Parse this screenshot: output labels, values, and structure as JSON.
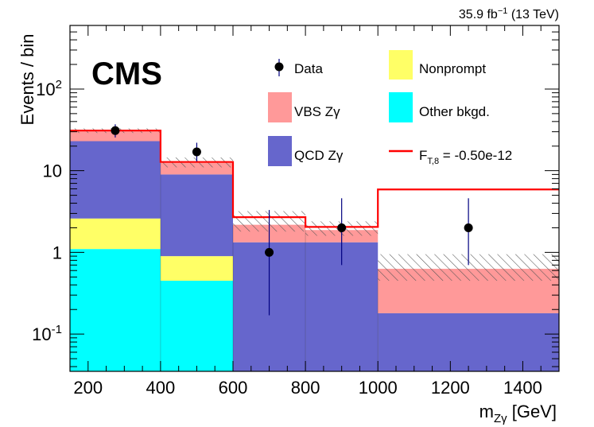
{
  "chart_data": {
    "type": "bar",
    "title": "",
    "luminosity_label": "35.9 fb⁻¹ (13 TeV)",
    "experiment_label": "CMS",
    "xlabel": "m_Zγ [GeV]",
    "xlabel_main": "m",
    "xlabel_sub": "Zγ",
    "xlabel_unit": "[GeV]",
    "ylabel": "Events / bin",
    "xlim": [
      150,
      1500
    ],
    "ylim": [
      0.035,
      600
    ],
    "yscale": "log",
    "x_ticks": [
      {
        "value": 200,
        "label": "200"
      },
      {
        "value": 400,
        "label": "400"
      },
      {
        "value": 600,
        "label": "600"
      },
      {
        "value": 800,
        "label": "800"
      },
      {
        "value": 1000,
        "label": "1000"
      },
      {
        "value": 1200,
        "label": "1200"
      },
      {
        "value": 1400,
        "label": "1400"
      }
    ],
    "y_ticks": [
      {
        "value": 0.1,
        "base": "10",
        "exp": "-1"
      },
      {
        "value": 1,
        "base": "1",
        "exp": ""
      },
      {
        "value": 10,
        "base": "10",
        "exp": ""
      },
      {
        "value": 100,
        "base": "10",
        "exp": "2"
      }
    ],
    "bin_edges": [
      150,
      400,
      600,
      800,
      1000,
      1500
    ],
    "stack": [
      {
        "name": "Other bkgd.",
        "color": "#00ffff",
        "values": [
          1.1,
          0.45,
          0.0,
          0.0,
          0.0
        ]
      },
      {
        "name": "Nonprompt",
        "color": "#ffff66",
        "values": [
          1.5,
          0.45,
          0.0,
          0.0,
          0.0
        ]
      },
      {
        "name": "QCD Zγ",
        "color": "#6666cc",
        "values": [
          20.4,
          8.1,
          1.33,
          1.33,
          0.18
        ]
      },
      {
        "name": "VBS Zγ",
        "color": "#ff9999",
        "values": [
          8.0,
          3.5,
          0.85,
          0.55,
          0.45
        ]
      }
    ],
    "uncertainty_band": {
      "low": [
        29.0,
        11.0,
        1.8,
        1.6,
        0.45
      ],
      "high": [
        33.0,
        14.5,
        3.2,
        2.4,
        0.95
      ]
    },
    "signal": {
      "name": "F_T,8 = -0.50e-12",
      "color": "#ff0000",
      "values": [
        31.0,
        12.8,
        2.7,
        2.05,
        5.9
      ]
    },
    "data": {
      "name": "Data",
      "x": [
        275,
        500,
        700,
        900,
        1250
      ],
      "y": [
        31,
        17,
        1.0,
        2.0,
        2.0
      ],
      "err_low": [
        25.5,
        13.0,
        0.17,
        0.7,
        0.7
      ],
      "err_high": [
        37.0,
        22.0,
        3.3,
        4.6,
        4.6
      ]
    },
    "legend": [
      {
        "key": "data",
        "label": "Data"
      },
      {
        "key": "nonprompt",
        "label": "Nonprompt"
      },
      {
        "key": "vbs",
        "label": "VBS Zγ"
      },
      {
        "key": "other",
        "label": "Other bkgd."
      },
      {
        "key": "qcd",
        "label": "QCD Zγ"
      },
      {
        "key": "signal",
        "label": "F_T,8 = -0.50e-12"
      }
    ],
    "legend_placement": "top-right"
  }
}
